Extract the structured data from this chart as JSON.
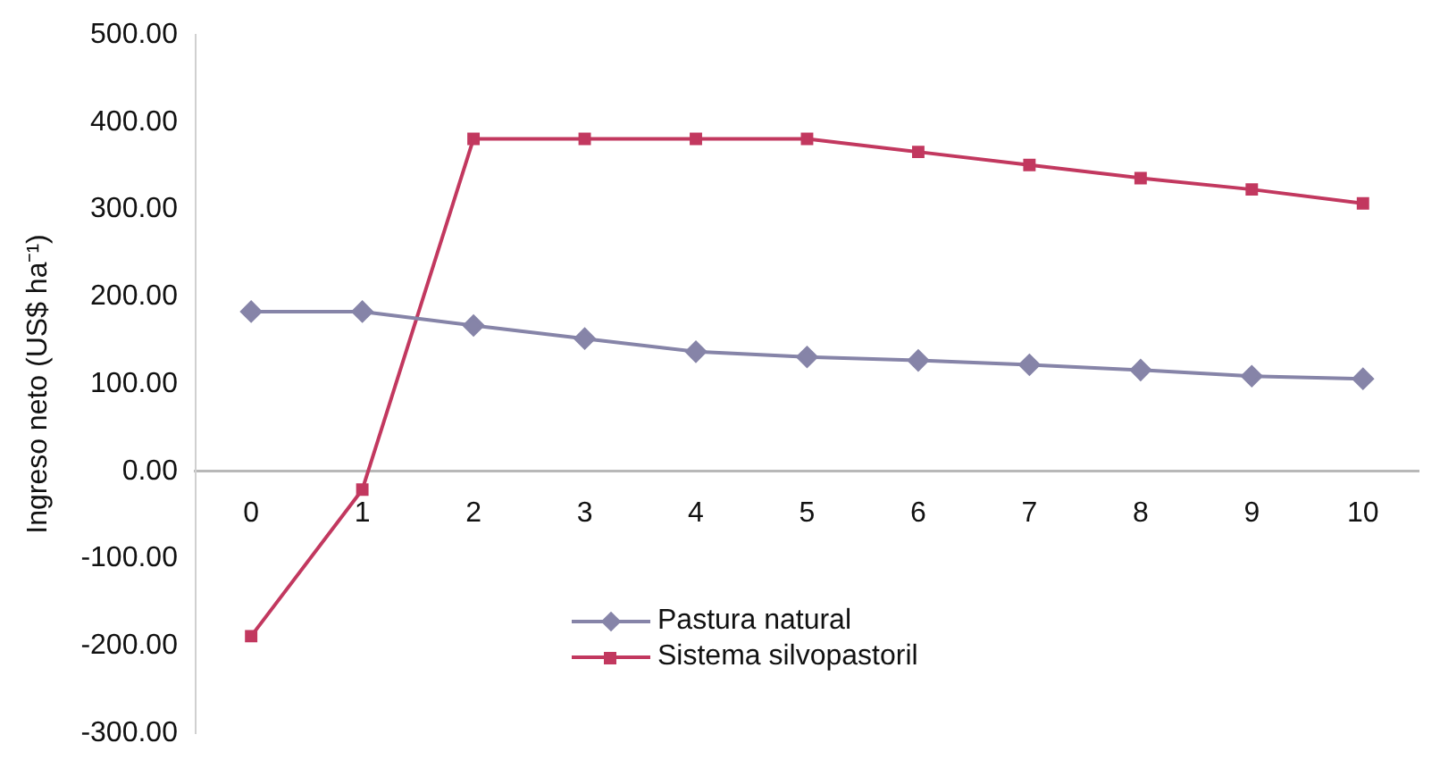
{
  "chart_data": {
    "type": "line",
    "ylabel": "Ingreso neto (US$ ha⁻¹)",
    "categories": [
      "0",
      "1",
      "2",
      "3",
      "4",
      "5",
      "6",
      "7",
      "8",
      "9",
      "10"
    ],
    "series": [
      {
        "name": "Pastura natural",
        "color": "#8684a8",
        "marker": "diamond",
        "values": [
          183,
          183,
          167,
          152,
          137,
          131,
          127,
          122,
          116,
          109,
          106
        ]
      },
      {
        "name": "Sistema silvopastoril",
        "color": "#c2385f",
        "marker": "square",
        "values": [
          -189,
          -21,
          381,
          381,
          381,
          381,
          366,
          351,
          336,
          323,
          307
        ]
      }
    ],
    "ylim": [
      -300,
      500
    ],
    "yticks": [
      {
        "value": -300,
        "label": "-300.00"
      },
      {
        "value": -200,
        "label": "-200.00"
      },
      {
        "value": -100,
        "label": "-100.00"
      },
      {
        "value": 0,
        "label": "0.00"
      },
      {
        "value": 100,
        "label": "100.00"
      },
      {
        "value": 200,
        "label": "200.00"
      },
      {
        "value": 300,
        "label": "300.00"
      },
      {
        "value": 400,
        "label": "400.00"
      },
      {
        "value": 500,
        "label": "500.00"
      }
    ],
    "grid": false,
    "legend": "bottom",
    "line_style": "solid"
  }
}
